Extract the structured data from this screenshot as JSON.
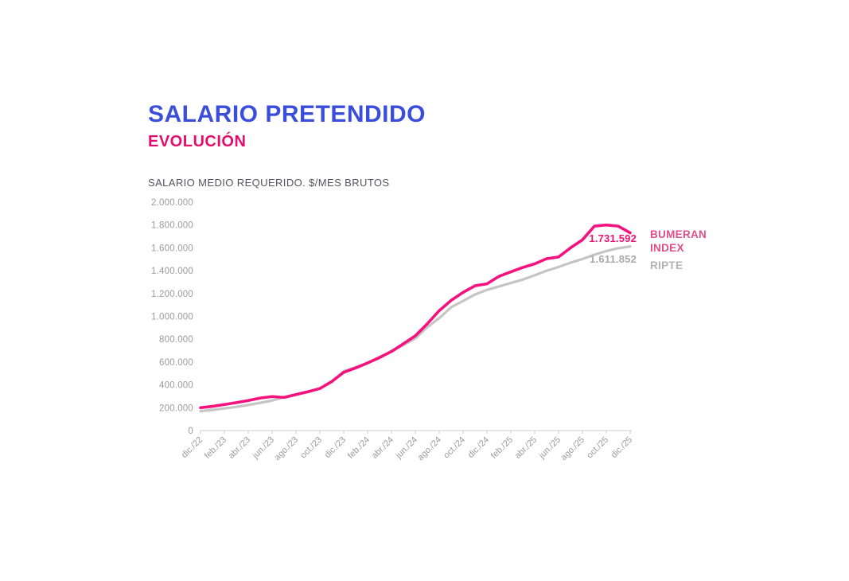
{
  "page": {
    "background": "#ffffff"
  },
  "header": {
    "title": "SALARIO PRETENDIDO",
    "subtitle": "EVOLUCIÓN"
  },
  "colors": {
    "title_blue": "#3b4edb",
    "subtitle_pink": "#e40e6d",
    "bumeran_line": "#f5127e",
    "bumeran_value_text": "#ed1273",
    "bumeran_legend_text": "#df4f8a",
    "ripte_line": "#c5c5c5",
    "ripte_value_text": "#a9a9a9",
    "ripte_legend_text": "#b3b3b3",
    "axis_text": "#9b9b9b",
    "axis_line": "#cccccc"
  },
  "chart_data": {
    "type": "line",
    "title": "SALARIO PRETENDIDO — EVOLUCIÓN",
    "ylabel": "SALARIO MEDIO REQUERIDO. $/MES BRUTOS",
    "xlabel": "",
    "ylim": [
      0,
      2000000
    ],
    "y_tick_step": 200000,
    "grid": false,
    "legend_position": "right",
    "y_tick_labels": [
      "2.000.000",
      "1.800.000",
      "1.600.000",
      "1.400.000",
      "1.200.000",
      "1.000.000",
      "800.000",
      "600.000",
      "400.000",
      "200.000",
      "0"
    ],
    "x": [
      "dic./22",
      "ene./23",
      "feb./23",
      "mar./23",
      "abr./23",
      "may./23",
      "jun./23",
      "jul./23",
      "ago./23",
      "sep./23",
      "oct./23",
      "nov./23",
      "dic./23",
      "ene./24",
      "feb./24",
      "mar./24",
      "abr./24",
      "may./24",
      "jun./24",
      "jul./24",
      "ago./24",
      "sep./24",
      "oct./24",
      "nov./24",
      "dic./24",
      "ene./25",
      "feb./25",
      "mar./25",
      "abr./25",
      "may./25",
      "jun./25",
      "jul./25",
      "ago./25",
      "sep./25",
      "oct./25",
      "nov./25",
      "dic./25"
    ],
    "x_tick_labels": [
      "dic./22",
      "feb./23",
      "abr./23",
      "jun./23",
      "ago./23",
      "oct./23",
      "dic./23",
      "feb./24",
      "abr./24",
      "jun./24",
      "ago./24",
      "oct./24",
      "dic./24",
      "feb./25",
      "abr./25",
      "jun./25",
      "ago./25",
      "oct./25",
      "dic./25"
    ],
    "series": [
      {
        "name": "BUMERAN INDEX",
        "color": "#f5127e",
        "end_label": "1.731.592",
        "end_value": 1731592,
        "values": [
          200000,
          212000,
          228000,
          245000,
          263000,
          285000,
          298000,
          290000,
          315000,
          340000,
          368000,
          430000,
          510000,
          548000,
          592000,
          640000,
          692000,
          760000,
          830000,
          935000,
          1050000,
          1140000,
          1210000,
          1268000,
          1285000,
          1350000,
          1390000,
          1428000,
          1460000,
          1505000,
          1520000,
          1600000,
          1670000,
          1790000,
          1800000,
          1790000,
          1731592
        ]
      },
      {
        "name": "RIPTE",
        "color": "#c5c5c5",
        "end_label": "1.611.852",
        "end_value": 1611852,
        "values": [
          170000,
          181000,
          194000,
          208000,
          224000,
          243000,
          263000,
          292000,
          318000,
          342000,
          370000,
          425000,
          520000,
          556000,
          592000,
          634000,
          700000,
          748000,
          808000,
          905000,
          985000,
          1080000,
          1135000,
          1192000,
          1232000,
          1262000,
          1292000,
          1322000,
          1360000,
          1400000,
          1432000,
          1470000,
          1502000,
          1540000,
          1572000,
          1596000,
          1611852
        ]
      }
    ]
  }
}
